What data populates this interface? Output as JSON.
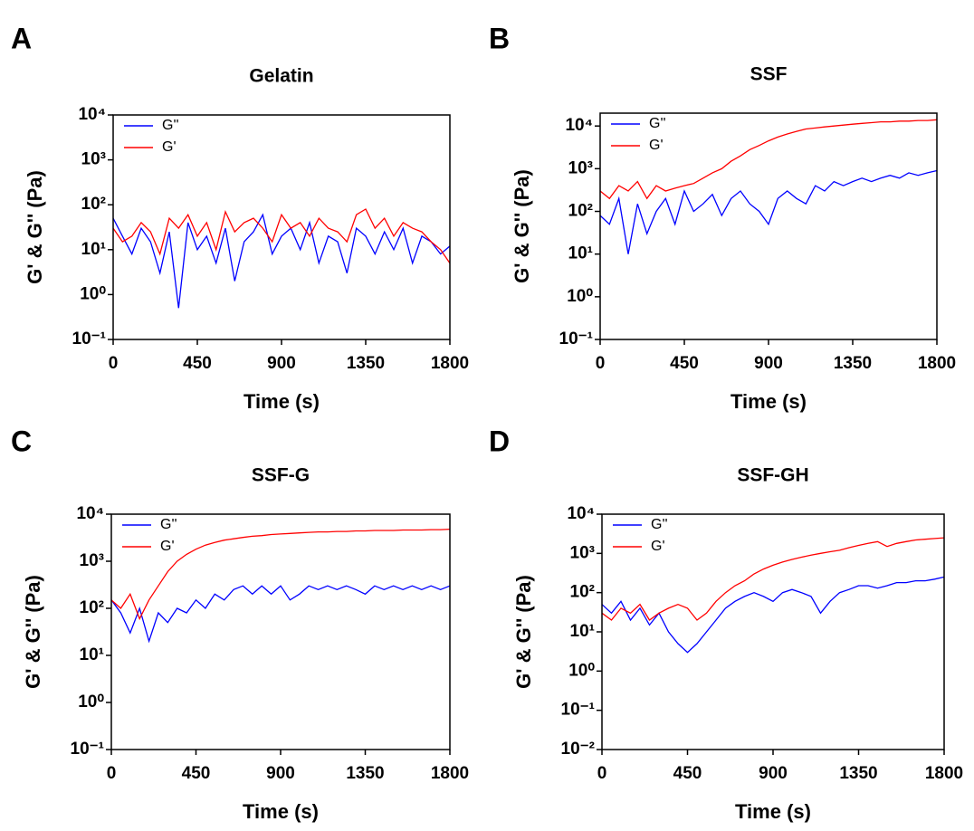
{
  "chart_data": [
    {
      "type": "line",
      "panel": "A",
      "title": "Gelatin",
      "xlabel": "Time (s)",
      "ylabel": "G' & G'' (Pa)",
      "log_y": true,
      "legend": "upper left",
      "x": [
        0,
        50,
        100,
        150,
        200,
        250,
        300,
        350,
        400,
        450,
        500,
        550,
        600,
        650,
        700,
        750,
        800,
        850,
        900,
        950,
        1000,
        1050,
        1100,
        1150,
        1200,
        1250,
        1300,
        1350,
        1400,
        1450,
        1500,
        1550,
        1600,
        1650,
        1700,
        1750,
        1800
      ],
      "xlim": [
        0,
        1800
      ],
      "xticks": [
        0,
        450,
        900,
        1350,
        1800
      ],
      "ylim": [
        0.1,
        10000
      ],
      "yticks": [
        {
          "value": 0.1,
          "label": "10⁻¹"
        },
        {
          "value": 1,
          "label": "10⁰"
        },
        {
          "value": 10,
          "label": "10¹"
        },
        {
          "value": 100,
          "label": "10²"
        },
        {
          "value": 1000,
          "label": "10³"
        },
        {
          "value": 10000,
          "label": "10⁴"
        }
      ],
      "series": [
        {
          "name": "G''",
          "color": "#0000ff",
          "values": [
            50,
            20,
            8,
            30,
            15,
            3,
            25,
            0.5,
            40,
            10,
            20,
            5,
            30,
            2,
            15,
            25,
            60,
            8,
            20,
            30,
            10,
            40,
            5,
            20,
            15,
            3,
            30,
            20,
            8,
            25,
            10,
            30,
            5,
            20,
            15,
            8,
            12
          ]
        },
        {
          "name": "G'",
          "color": "#ff0000",
          "values": [
            30,
            15,
            20,
            40,
            25,
            8,
            50,
            30,
            60,
            20,
            40,
            10,
            70,
            25,
            40,
            50,
            30,
            15,
            60,
            30,
            40,
            20,
            50,
            30,
            25,
            15,
            60,
            80,
            30,
            50,
            20,
            40,
            30,
            25,
            15,
            10,
            5
          ]
        }
      ]
    },
    {
      "type": "line",
      "panel": "B",
      "title": "SSF",
      "xlabel": "Time (s)",
      "ylabel": "G' & G'' (Pa)",
      "log_y": true,
      "legend": "upper left",
      "x": [
        0,
        50,
        100,
        150,
        200,
        250,
        300,
        350,
        400,
        450,
        500,
        550,
        600,
        650,
        700,
        750,
        800,
        850,
        900,
        950,
        1000,
        1050,
        1100,
        1150,
        1200,
        1250,
        1300,
        1350,
        1400,
        1450,
        1500,
        1550,
        1600,
        1650,
        1700,
        1750,
        1800
      ],
      "xlim": [
        0,
        1800
      ],
      "xticks": [
        0,
        450,
        900,
        1350,
        1800
      ],
      "ylim": [
        0.1,
        20000
      ],
      "yticks": [
        {
          "value": 0.1,
          "label": "10⁻¹"
        },
        {
          "value": 1,
          "label": "10⁰"
        },
        {
          "value": 10,
          "label": "10¹"
        },
        {
          "value": 100,
          "label": "10²"
        },
        {
          "value": 1000,
          "label": "10³"
        },
        {
          "value": 10000,
          "label": "10⁴"
        }
      ],
      "series": [
        {
          "name": "G''",
          "color": "#0000ff",
          "values": [
            80,
            50,
            200,
            10,
            150,
            30,
            100,
            200,
            50,
            300,
            100,
            150,
            250,
            80,
            200,
            300,
            150,
            100,
            50,
            200,
            300,
            200,
            150,
            400,
            300,
            500,
            400,
            500,
            600,
            500,
            600,
            700,
            600,
            800,
            700,
            800,
            900
          ]
        },
        {
          "name": "G'",
          "color": "#ff0000",
          "values": [
            300,
            200,
            400,
            300,
            500,
            200,
            400,
            300,
            350,
            400,
            450,
            600,
            800,
            1000,
            1500,
            2000,
            2800,
            3500,
            4500,
            5500,
            6500,
            7500,
            8500,
            9000,
            9500,
            10000,
            10500,
            11000,
            11500,
            12000,
            12500,
            12500,
            13000,
            13000,
            13500,
            13500,
            14000
          ]
        }
      ]
    },
    {
      "type": "line",
      "panel": "C",
      "title": "SSF-G",
      "xlabel": "Time (s)",
      "ylabel": "G' & G'' (Pa)",
      "log_y": true,
      "legend": "upper left",
      "x": [
        0,
        50,
        100,
        150,
        200,
        250,
        300,
        350,
        400,
        450,
        500,
        550,
        600,
        650,
        700,
        750,
        800,
        850,
        900,
        950,
        1000,
        1050,
        1100,
        1150,
        1200,
        1250,
        1300,
        1350,
        1400,
        1450,
        1500,
        1550,
        1600,
        1650,
        1700,
        1750,
        1800
      ],
      "xlim": [
        0,
        1800
      ],
      "xticks": [
        0,
        450,
        900,
        1350,
        1800
      ],
      "ylim": [
        0.1,
        10000
      ],
      "yticks": [
        {
          "value": 0.1,
          "label": "10⁻¹"
        },
        {
          "value": 1,
          "label": "10⁰"
        },
        {
          "value": 10,
          "label": "10¹"
        },
        {
          "value": 100,
          "label": "10²"
        },
        {
          "value": 1000,
          "label": "10³"
        },
        {
          "value": 10000,
          "label": "10⁴"
        }
      ],
      "series": [
        {
          "name": "G''",
          "color": "#0000ff",
          "values": [
            150,
            80,
            30,
            100,
            20,
            80,
            50,
            100,
            80,
            150,
            100,
            200,
            150,
            250,
            300,
            200,
            300,
            200,
            300,
            150,
            200,
            300,
            250,
            300,
            250,
            300,
            250,
            200,
            300,
            250,
            300,
            250,
            300,
            250,
            300,
            250,
            300
          ]
        },
        {
          "name": "G'",
          "color": "#ff0000",
          "values": [
            150,
            100,
            200,
            60,
            150,
            300,
            600,
            1000,
            1400,
            1800,
            2200,
            2500,
            2800,
            3000,
            3200,
            3400,
            3500,
            3700,
            3800,
            3900,
            4000,
            4100,
            4200,
            4200,
            4300,
            4300,
            4400,
            4400,
            4500,
            4500,
            4500,
            4600,
            4600,
            4600,
            4700,
            4700,
            4800
          ]
        }
      ]
    },
    {
      "type": "line",
      "panel": "D",
      "title": "SSF-GH",
      "xlabel": "Time (s)",
      "ylabel": "G' & G'' (Pa)",
      "log_y": true,
      "legend": "upper left",
      "x": [
        0,
        50,
        100,
        150,
        200,
        250,
        300,
        350,
        400,
        450,
        500,
        550,
        600,
        650,
        700,
        750,
        800,
        850,
        900,
        950,
        1000,
        1050,
        1100,
        1150,
        1200,
        1250,
        1300,
        1350,
        1400,
        1450,
        1500,
        1550,
        1600,
        1650,
        1700,
        1750,
        1800
      ],
      "xlim": [
        0,
        1800
      ],
      "xticks": [
        0,
        450,
        900,
        1350,
        1800
      ],
      "ylim": [
        0.01,
        10000
      ],
      "yticks": [
        {
          "value": 0.01,
          "label": "10⁻²"
        },
        {
          "value": 0.1,
          "label": "10⁻¹"
        },
        {
          "value": 1,
          "label": "10⁰"
        },
        {
          "value": 10,
          "label": "10¹"
        },
        {
          "value": 100,
          "label": "10²"
        },
        {
          "value": 1000,
          "label": "10³"
        },
        {
          "value": 10000,
          "label": "10⁴"
        }
      ],
      "series": [
        {
          "name": "G''",
          "color": "#0000ff",
          "values": [
            50,
            30,
            60,
            20,
            40,
            15,
            30,
            10,
            5,
            3,
            5,
            10,
            20,
            40,
            60,
            80,
            100,
            80,
            60,
            100,
            120,
            100,
            80,
            30,
            60,
            100,
            120,
            150,
            150,
            130,
            150,
            180,
            180,
            200,
            200,
            220,
            250
          ]
        },
        {
          "name": "G'",
          "color": "#ff0000",
          "values": [
            30,
            20,
            40,
            30,
            50,
            20,
            30,
            40,
            50,
            40,
            20,
            30,
            60,
            100,
            150,
            200,
            300,
            400,
            500,
            600,
            700,
            800,
            900,
            1000,
            1100,
            1200,
            1400,
            1600,
            1800,
            2000,
            1500,
            1800,
            2000,
            2200,
            2300,
            2400,
            2500
          ]
        }
      ]
    }
  ]
}
